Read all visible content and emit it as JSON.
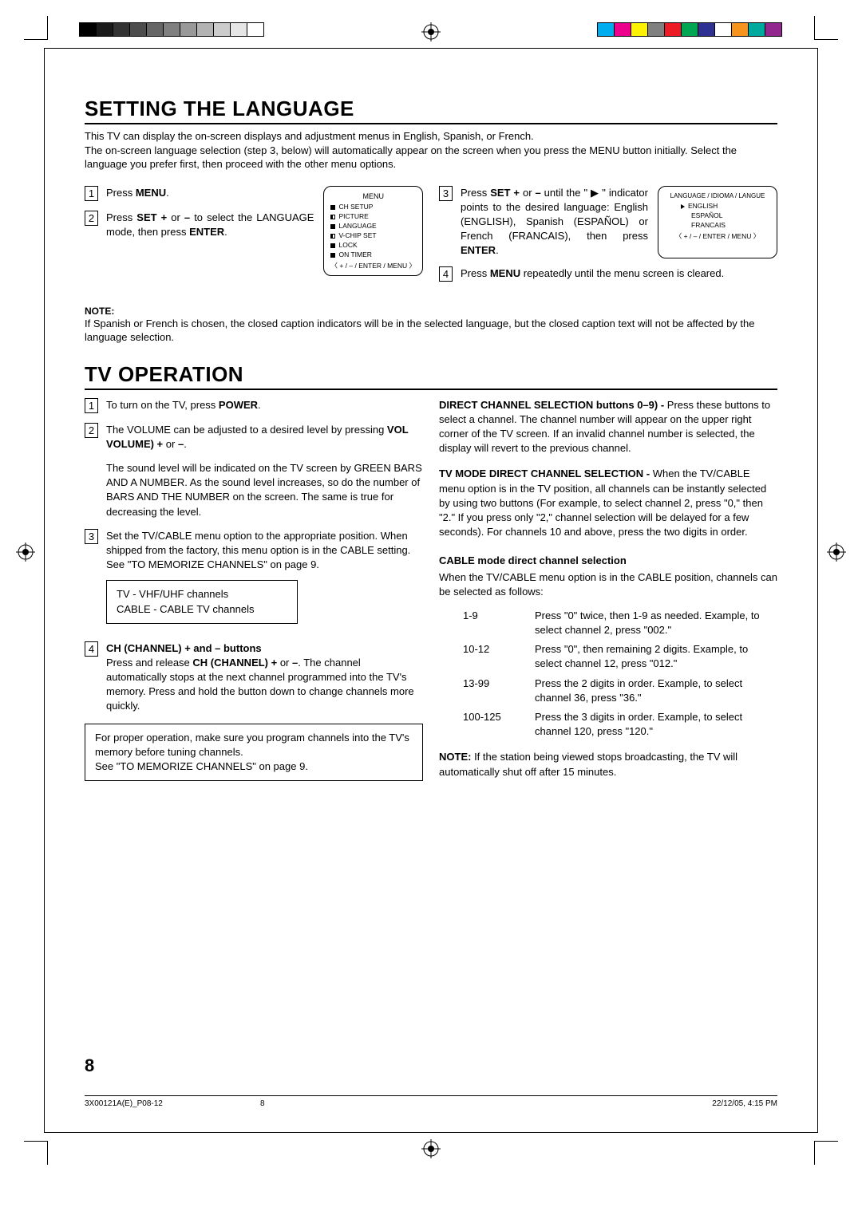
{
  "colorbar_gray": [
    "#000000",
    "#1a1a1a",
    "#333333",
    "#4d4d4d",
    "#666666",
    "#808080",
    "#999999",
    "#b3b3b3",
    "#cccccc",
    "#e6e6e6",
    "#ffffff"
  ],
  "colorbar_color": [
    "#00aeef",
    "#ec008c",
    "#fff200",
    "#808080",
    "#ed1c24",
    "#00a651",
    "#2e3192",
    "#ffffff",
    "#f7941d",
    "#00a99d",
    "#92278f"
  ],
  "section1": {
    "title": "SETTING THE LANGUAGE",
    "intro": "This TV can display the on-screen displays and adjustment menus in English, Spanish, or French.\nThe on-screen language selection (step 3, below) will automatically appear on the screen when you press the MENU button initially. Select the language you prefer first, then proceed with the other menu options.",
    "step1": {
      "pre": "Press ",
      "bold": "MENU",
      "post": "."
    },
    "step2_a": "Press ",
    "step2_b": "SET +",
    "step2_c": " or ",
    "step2_d": "–",
    "step2_e": " to select the LANGUAGE mode, then press ",
    "step2_f": "ENTER",
    "step2_g": ".",
    "step3": "Press <b>SET +</b> or <b>–</b> until the \" ▶ \" indicator points to the desired language: English (ENGLISH), Spanish (ESPAÑOL) or French (FRANCAIS), then press <b>ENTER</b>.",
    "step4": "Press <b>MENU</b> repeatedly until the menu screen is cleared.",
    "note_label": "NOTE:",
    "note_text": "If Spanish or French is chosen, the closed caption indicators will be in the selected language, but the closed caption text will not be affected by the language selection.",
    "osd_menu": {
      "title": "MENU",
      "items": [
        "CH  SETUP",
        "PICTURE",
        "LANGUAGE",
        "V-CHIP  SET",
        "LOCK",
        "ON  TIMER"
      ],
      "footer": "〈 + / – / ENTER / MENU 〉"
    },
    "osd_lang": {
      "title": "LANGUAGE / IDIOMA / LANGUE",
      "items": [
        "ENGLISH",
        "ESPAÑOL",
        "FRANCAIS"
      ],
      "footer": "〈 + / – / ENTER / MENU 〉"
    }
  },
  "section2": {
    "title": "TV OPERATION",
    "step1": "To turn on the TV, press <b>POWER</b>.",
    "step2": "The VOLUME can be adjusted to a desired level by pressing <b>VOL VOLUME) +</b> or <b>–</b>.",
    "step2b": "The sound level will be indicated on the TV screen by GREEN BARS AND A NUMBER. As the sound level increases, so do the number of BARS AND THE NUMBER on the screen. The same is true for decreasing the level.",
    "step3": "Set the TV/CABLE menu option to the appropriate position. When shipped from the factory, this menu option is in the CABLE setting. See \"TO MEMORIZE CHANNELS\" on page 9.",
    "tvbox": "TV - VHF/UHF channels\nCABLE - CABLE TV channels",
    "step4_head": "CH (CHANNEL) + and – buttons",
    "step4_body": "Press and release <b>CH (CHANNEL) +</b> or <b>–</b>. The channel automatically stops at the next channel programmed into the TV's memory. Press and hold the button down to change channels more quickly.",
    "memorize_box": "For proper operation, make sure you program channels into the TV's memory before tuning channels.\nSee \"TO MEMORIZE CHANNELS\" on page 9.",
    "direct_sel": "<b>DIRECT CHANNEL SELECTION buttons 0–9) -</b> Press these buttons to select a channel. The channel number will appear on the upper right corner of the TV screen. If an invalid channel number is selected, the display will revert to the previous channel.",
    "tv_mode": "<b>TV MODE DIRECT CHANNEL SELECTION -</b> When the TV/CABLE menu option is in the TV position, all channels can be instantly selected by using two buttons (For example, to select channel 2, press \"0,\" then \"2.\" If you press only \"2,\" channel selection will be delayed for a few seconds). For channels 10 and above, press the two digits in order.",
    "cable_head": "CABLE mode direct channel selection",
    "cable_intro": "When the TV/CABLE menu option is in the CABLE position, channels can be selected as follows:",
    "cable_rows": [
      {
        "range": "1-9",
        "desc": "Press \"0\" twice, then 1-9 as needed. Example, to select channel 2, press \"002.\""
      },
      {
        "range": "10-12",
        "desc": "Press \"0\", then remaining 2 digits. Example, to select channel 12, press \"012.\""
      },
      {
        "range": "13-99",
        "desc": "Press the 2 digits in order. Example, to select channel 36, press \"36.\""
      },
      {
        "range": "100-125",
        "desc": "Press the 3 digits in order. Example, to select channel 120, press \"120.\""
      }
    ],
    "final_note": "<b>NOTE:</b> If the station being viewed stops broadcasting, the TV will automatically shut off after 15 minutes."
  },
  "page_num": "8",
  "footer": {
    "left": "3X00121A(E)_P08-12",
    "mid": "8",
    "right": "22/12/05, 4:15 PM"
  }
}
